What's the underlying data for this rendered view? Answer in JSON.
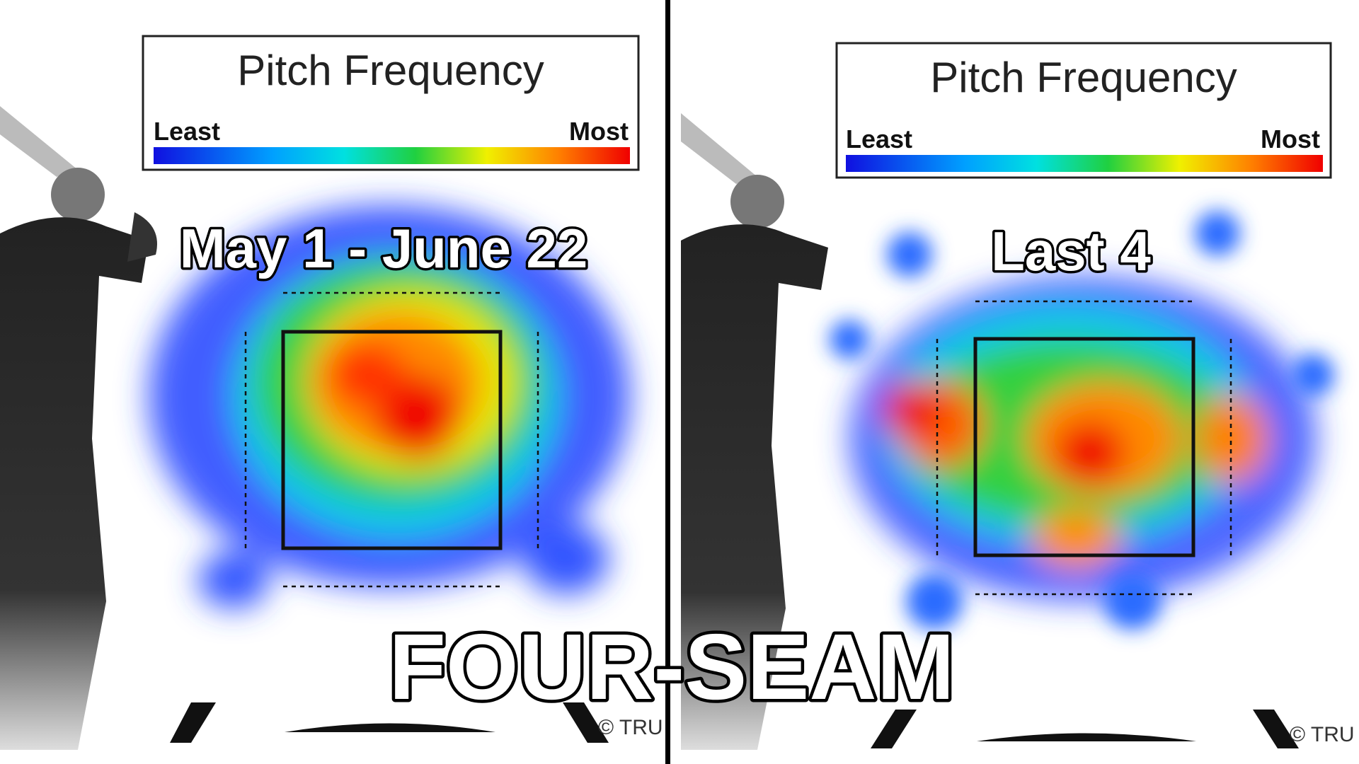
{
  "panels": [
    {
      "legend": {
        "title": "Pitch Frequency",
        "least": "Least",
        "most": "Most"
      },
      "label": "May 1 - June 22",
      "credit": "© TRU"
    },
    {
      "legend": {
        "title": "Pitch Frequency",
        "least": "Least",
        "most": "Most"
      },
      "label": "Last 4",
      "credit": "© TRU"
    }
  ],
  "overlay": "FOUR-SEAM"
}
